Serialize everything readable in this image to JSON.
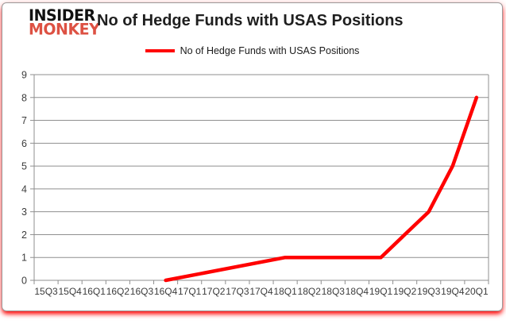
{
  "logo": {
    "line1": "INSIDER",
    "line2": "MONKEY"
  },
  "header": {
    "title": "No of Hedge Funds with USAS Positions"
  },
  "legend": {
    "label": "No of Hedge Funds with USAS Positions",
    "swatch_color": "#ff0000"
  },
  "chart_data": {
    "type": "line",
    "title": "No of Hedge Funds with USAS Positions",
    "xlabel": "",
    "ylabel": "",
    "categories": [
      "15Q3",
      "15Q4",
      "16Q1",
      "16Q2",
      "16Q3",
      "16Q4",
      "17Q1",
      "17Q2",
      "17Q3",
      "17Q4",
      "18Q1",
      "18Q2",
      "18Q3",
      "18Q4",
      "19Q1",
      "19Q2",
      "19Q3",
      "19Q4",
      "20Q1"
    ],
    "series": [
      {
        "name": "No of Hedge Funds with USAS Positions",
        "color": "#ff0000",
        "values": [
          null,
          null,
          null,
          null,
          null,
          0,
          null,
          null,
          null,
          null,
          1,
          1,
          1,
          1,
          1,
          2,
          3,
          5,
          8
        ],
        "connect_gaps": true
      }
    ],
    "ylim": [
      0,
      9
    ],
    "ytick_step": 1,
    "grid": "horizontal",
    "legend_position": "top"
  },
  "colors": {
    "line": "#ff0000",
    "grid": "#8f8f8f",
    "axis": "#8f8f8f",
    "tick_text": "#3c3c3c",
    "title_text": "#1f1f1f",
    "logo_black": "#111111",
    "logo_red": "#dd5143",
    "bottom_glow": "#ff0000"
  }
}
